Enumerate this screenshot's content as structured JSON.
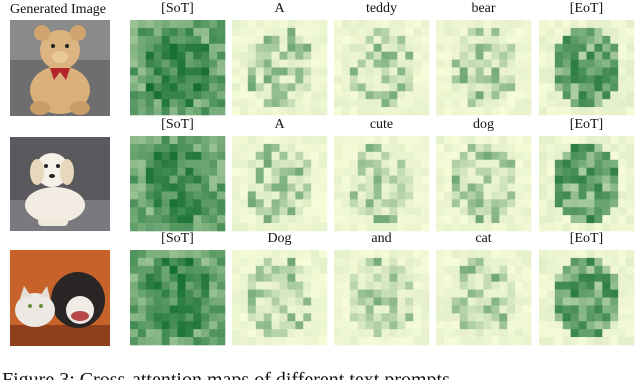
{
  "header": {
    "first_column": "Generated Image"
  },
  "rows": [
    {
      "tokens": [
        "[SoT]",
        "A",
        "teddy",
        "bear",
        "[EoT]"
      ]
    },
    {
      "tokens": [
        "[SoT]",
        "A",
        "cute",
        "dog",
        "[EoT]"
      ]
    },
    {
      "tokens": [
        "[SoT]",
        "Dog",
        "and",
        "cat",
        "[EoT]"
      ]
    }
  ],
  "caption": "Figure 3: Cross-attention maps of different text prompts"
}
